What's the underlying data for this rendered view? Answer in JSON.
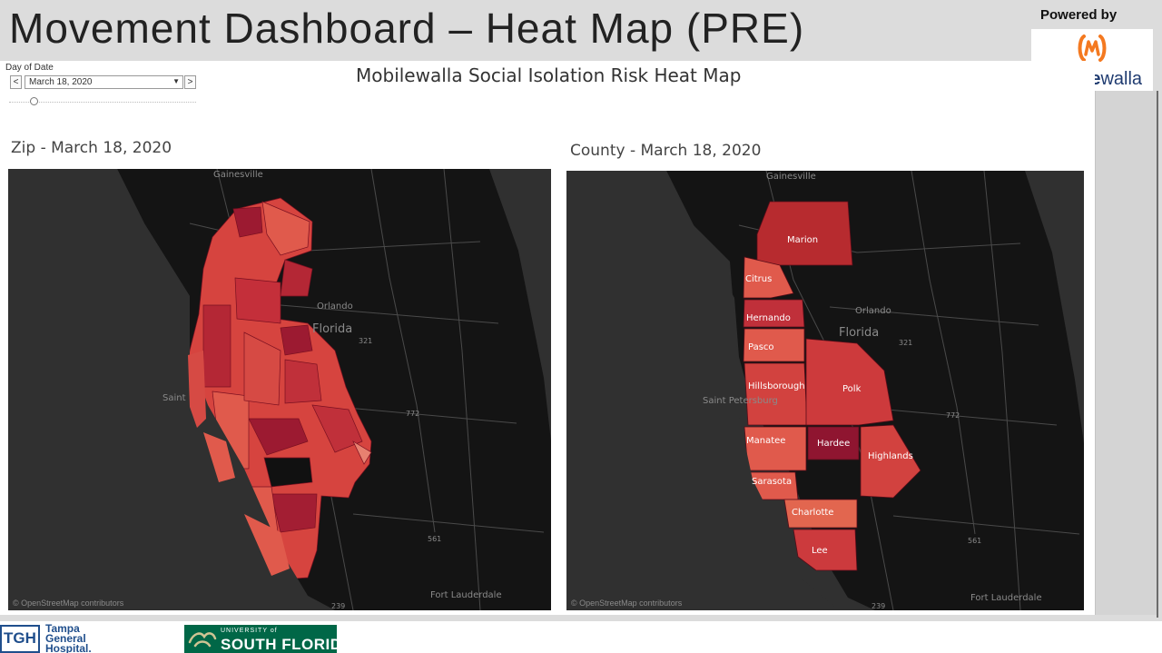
{
  "slide": {
    "title": "Movement Dashboard – Heat Map (PRE)"
  },
  "branding": {
    "powered_by": "Powered by",
    "brand_bold": "mobile",
    "brand_light": "walla",
    "logo_icon": "mobilewalla-logo-icon",
    "logo_color": "#f47920"
  },
  "filter": {
    "label": "Day of Date",
    "prev_label": "<",
    "next_label": ">",
    "selected": "March 18, 2020",
    "caret": "▼"
  },
  "dashboard": {
    "title": "Mobilewalla Social Isolation Risk Heat Map"
  },
  "maps": {
    "zip": {
      "title": "Zip - March 18, 2020",
      "credit": "© OpenStreetMap contributors",
      "places": [
        {
          "name": "Gainesville"
        },
        {
          "name": "Orlando"
        },
        {
          "name": "Florida"
        },
        {
          "name": "Saint"
        },
        {
          "name": "Fort Lauderdale"
        },
        {
          "name": "321"
        },
        {
          "name": "772"
        },
        {
          "name": "561"
        },
        {
          "name": "239"
        }
      ]
    },
    "county": {
      "title": "County - March 18, 2020",
      "credit": "© OpenStreetMap contributors",
      "places": [
        {
          "name": "Gainesville"
        },
        {
          "name": "Orlando"
        },
        {
          "name": "Florida"
        },
        {
          "name": "Saint Petersburg"
        },
        {
          "name": "Fort Lauderdale"
        },
        {
          "name": "321"
        },
        {
          "name": "772"
        },
        {
          "name": "561"
        },
        {
          "name": "239"
        }
      ],
      "counties": [
        {
          "name": "Marion",
          "color": "#b72b2f"
        },
        {
          "name": "Citrus",
          "color": "#e05a4c"
        },
        {
          "name": "Hernando",
          "color": "#c0303a"
        },
        {
          "name": "Pasco",
          "color": "#e05a4c"
        },
        {
          "name": "Hillsborough",
          "color": "#d2423f"
        },
        {
          "name": "Polk",
          "color": "#cd3a3c"
        },
        {
          "name": "Manatee",
          "color": "#e05a4c"
        },
        {
          "name": "Hardee",
          "color": "#8f1530"
        },
        {
          "name": "Highlands",
          "color": "#d2423f"
        },
        {
          "name": "Sarasota",
          "color": "#e05a4c"
        },
        {
          "name": "Charlotte",
          "color": "#e2664f"
        },
        {
          "name": "Lee",
          "color": "#cc3a3d"
        }
      ]
    }
  },
  "footer": {
    "tgh_abbr": "TGH",
    "tgh_name_line1": "Tampa",
    "tgh_name_line2": "General",
    "tgh_name_line3": "Hospital.",
    "usf_small": "UNIVERSITY of",
    "usf_big": "SOUTH FLORIDA",
    "usf_icon": "usf-bull-icon"
  }
}
